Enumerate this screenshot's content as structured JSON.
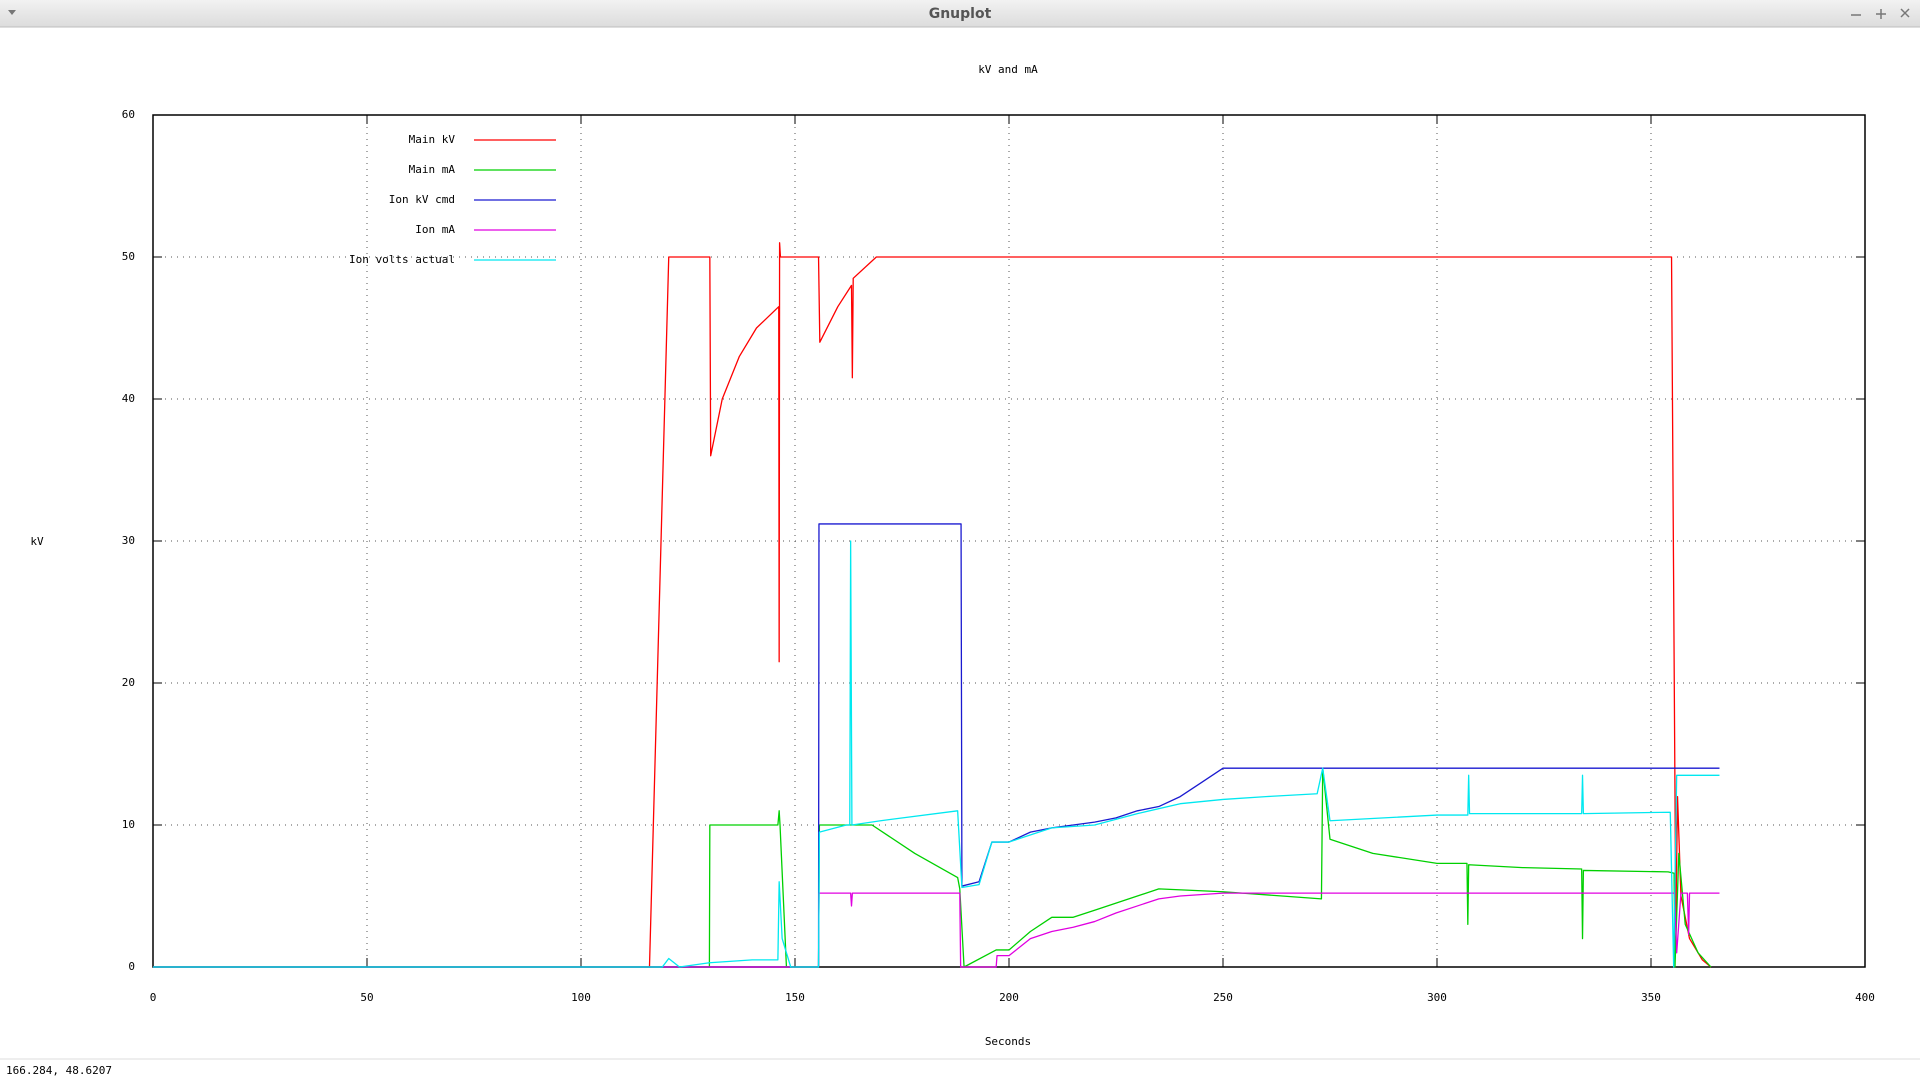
{
  "window": {
    "title": "Gnuplot",
    "status": "166.284,  48.6207"
  },
  "chart_data": {
    "type": "line",
    "title": "kV and mA",
    "xlabel": "Seconds",
    "ylabel": "kV",
    "xlim": [
      0,
      400
    ],
    "xticks": [
      0,
      50,
      100,
      150,
      200,
      250,
      300,
      350,
      400
    ],
    "ylim": [
      0,
      60
    ],
    "yticks": [
      0,
      10,
      20,
      30,
      40,
      50,
      60
    ],
    "grid": true,
    "legend": "top-left",
    "series": [
      {
        "name": "Main kV",
        "color": "#ff0000",
        "x": [
          116,
          120.5,
          130.1,
          130.3,
          133,
          137,
          141,
          146.2,
          146.3,
          146.4,
          146.6,
          155.5,
          155.8,
          160,
          163.2,
          163.4,
          163.6,
          169,
          250,
          272,
          354.8,
          355.8,
          356.2,
          357,
          359,
          362,
          364
        ],
        "values": [
          0,
          50,
          50,
          36,
          40,
          43,
          45,
          46.5,
          21.5,
          51,
          50,
          50,
          44,
          46.5,
          48,
          41.5,
          48.5,
          50,
          50,
          50,
          50,
          3,
          12,
          5,
          2,
          0.5,
          0
        ]
      },
      {
        "name": "Main mA",
        "color": "#00d000",
        "x": [
          0,
          130,
          130.1,
          146,
          146.3,
          146.5,
          148,
          155.5,
          155.7,
          168,
          178,
          188,
          188.5,
          189.5,
          197,
          200,
          205,
          210,
          215,
          220,
          225,
          230,
          235,
          250,
          273,
          273.3,
          275,
          285,
          300,
          307,
          307.2,
          307.4,
          320,
          333.8,
          334,
          334.2,
          354,
          355.4,
          355.6,
          356.5,
          358,
          361,
          364
        ],
        "values": [
          0,
          0,
          10,
          10,
          11,
          10,
          0,
          0,
          10,
          10,
          8,
          6.3,
          5.5,
          0,
          1.2,
          1.2,
          2.5,
          3.5,
          3.5,
          4,
          4.5,
          5,
          5.5,
          5.3,
          4.8,
          14,
          9,
          8,
          7.3,
          7.3,
          3,
          7.2,
          7,
          6.9,
          2,
          6.8,
          6.7,
          6.6,
          0,
          8,
          3,
          1,
          0
        ]
      },
      {
        "name": "Ion kV cmd",
        "color": "#1a1ad0",
        "x": [
          0,
          155.5,
          155.6,
          188.8,
          189,
          193,
          196,
          200,
          205,
          210,
          220,
          225,
          230,
          235,
          240,
          245,
          250,
          366
        ],
        "values": [
          0,
          0,
          31.2,
          31.2,
          5.7,
          6,
          8.8,
          8.8,
          9.5,
          9.8,
          10.2,
          10.5,
          11,
          11.3,
          12,
          13,
          14,
          14
        ]
      },
      {
        "name": "Ion mA",
        "color": "#e000e0",
        "x": [
          0,
          155.5,
          155.6,
          163,
          163.2,
          163.4,
          188.5,
          188.7,
          197,
          197.2,
          200,
          205,
          210,
          215,
          220,
          225,
          230,
          235,
          240,
          250,
          355.5,
          356,
          357,
          358.5,
          358.8,
          359,
          366
        ],
        "values": [
          0,
          0,
          5.2,
          5.2,
          4.3,
          5.2,
          5.2,
          0,
          0,
          0.8,
          0.8,
          2,
          2.5,
          2.8,
          3.2,
          3.8,
          4.3,
          4.8,
          5,
          5.2,
          5.2,
          1,
          5.2,
          5.2,
          2.3,
          5.2,
          5.2
        ]
      },
      {
        "name": "Ion volts actual",
        "color": "#00e8f0",
        "x": [
          0,
          119,
          120.5,
          123,
          130,
          140,
          146,
          146.3,
          147,
          149,
          155.5,
          155.7,
          162,
          162.8,
          163,
          163.3,
          170,
          188,
          189,
          193,
          196,
          200,
          210,
          220,
          230,
          240,
          250,
          260,
          272,
          273.3,
          275,
          300,
          307.2,
          307.4,
          307.6,
          333.8,
          334,
          334.2,
          354.5,
          355.3,
          356,
          366
        ],
        "values": [
          0,
          0,
          0.6,
          0,
          0.3,
          0.5,
          0.5,
          6,
          2,
          0,
          0,
          9.5,
          10,
          10,
          30,
          10,
          10.3,
          11,
          5.6,
          5.8,
          8.8,
          8.8,
          9.8,
          10,
          10.8,
          11.5,
          11.8,
          12,
          12.2,
          14,
          10.3,
          10.7,
          10.7,
          13.5,
          10.8,
          10.8,
          13.5,
          10.8,
          10.9,
          0,
          13.5,
          13.5
        ]
      }
    ]
  }
}
